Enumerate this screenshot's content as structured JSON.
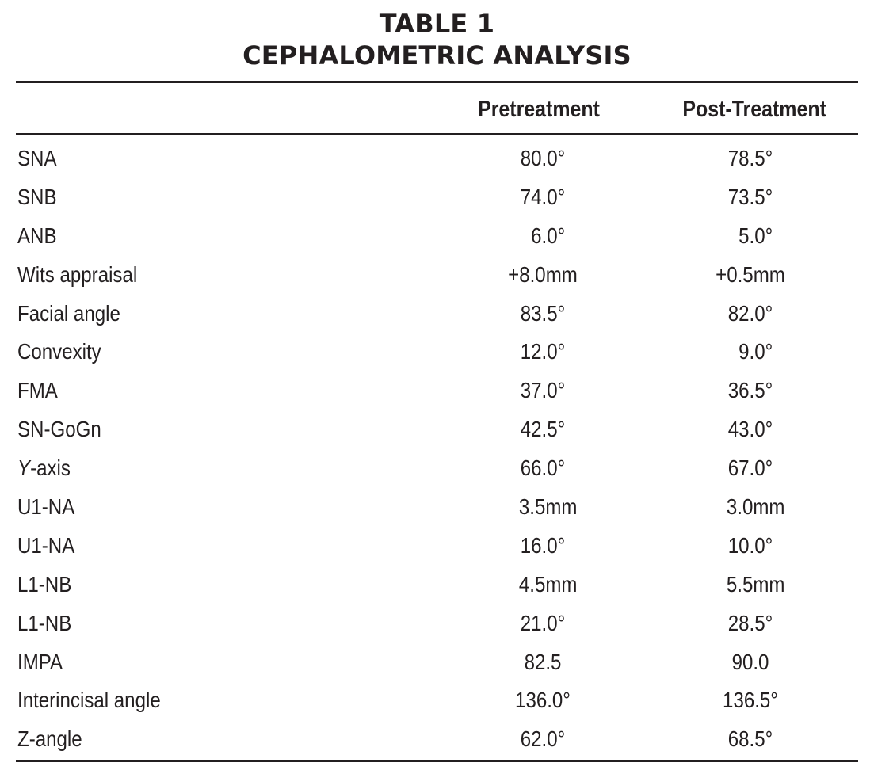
{
  "table": {
    "title_line1": "TABLE 1",
    "title_line2": "CEPHALOMETRIC ANALYSIS",
    "headers": {
      "measure": "",
      "pretreatment": "Pretreatment",
      "post_treatment": "Post-Treatment"
    },
    "rows": [
      {
        "label": "SNA",
        "pre": "80.0°",
        "post": "78.5°"
      },
      {
        "label": "SNB",
        "pre": "74.0°",
        "post": "73.5°"
      },
      {
        "label": "ANB",
        "pre": "  6.0°",
        "post": "  5.0°"
      },
      {
        "label": "Wits appraisal",
        "pre": "+8.0mm",
        "post": "+0.5mm"
      },
      {
        "label": "Facial angle",
        "pre": "83.5°",
        "post": "82.0°"
      },
      {
        "label": "Convexity",
        "pre": "12.0°",
        "post": "  9.0°"
      },
      {
        "label": "FMA",
        "pre": "37.0°",
        "post": "36.5°"
      },
      {
        "label": "SN-GoGn",
        "pre": "42.5°",
        "post": "43.0°"
      },
      {
        "label_prefix": "Y",
        "label_suffix": "-axis",
        "pre": "66.0°",
        "post": "67.0°"
      },
      {
        "label": "U1-NA",
        "pre": "  3.5mm",
        "post": "  3.0mm"
      },
      {
        "label": "U1-NA",
        "pre": "16.0°",
        "post": "10.0°"
      },
      {
        "label": "L1-NB",
        "pre": "  4.5mm",
        "post": "  5.5mm"
      },
      {
        "label": "L1-NB",
        "pre": "21.0°",
        "post": "28.5°"
      },
      {
        "label": "IMPA",
        "pre": "82.5",
        "post": "90.0"
      },
      {
        "label": "Interincisal angle",
        "pre": "136.0°",
        "post": "136.5°"
      },
      {
        "label": "Z-angle",
        "pre": "62.0°",
        "post": "68.5°"
      }
    ]
  }
}
